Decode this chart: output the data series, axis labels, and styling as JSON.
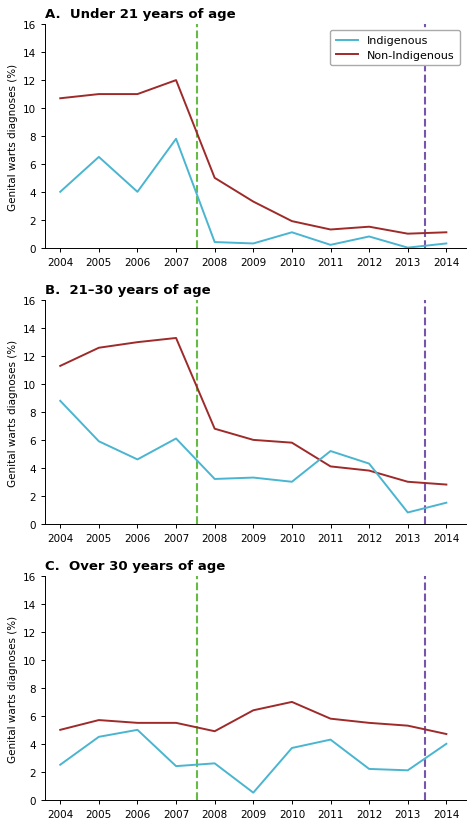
{
  "panels": [
    {
      "title": "A.  Under 21 years of age",
      "x_indigenous": [
        2004,
        2005,
        2006,
        2007,
        2008,
        2009,
        2010,
        2011,
        2012,
        2013,
        2014
      ],
      "y_indigenous": [
        4.0,
        6.5,
        4.0,
        7.8,
        0.4,
        0.3,
        1.1,
        0.2,
        0.8,
        0.0,
        0.3
      ],
      "x_non_indigenous": [
        2004,
        2005,
        2006,
        2007,
        2008,
        2009,
        2010,
        2011,
        2012,
        2013,
        2014
      ],
      "y_non_indigenous": [
        10.7,
        11.0,
        11.0,
        12.0,
        5.0,
        3.3,
        1.9,
        1.3,
        1.5,
        1.0,
        1.1
      ]
    },
    {
      "title": "B.  21–30 years of age",
      "x_indigenous": [
        2004,
        2005,
        2006,
        2007,
        2008,
        2009,
        2010,
        2011,
        2012,
        2013,
        2014
      ],
      "y_indigenous": [
        8.8,
        5.9,
        4.6,
        6.1,
        3.2,
        3.3,
        3.0,
        5.2,
        4.3,
        0.8,
        1.5
      ],
      "x_non_indigenous": [
        2004,
        2005,
        2006,
        2007,
        2008,
        2009,
        2010,
        2011,
        2012,
        2013,
        2014
      ],
      "y_non_indigenous": [
        11.3,
        12.6,
        13.0,
        13.3,
        6.8,
        6.0,
        5.8,
        4.1,
        3.8,
        3.0,
        2.8
      ]
    },
    {
      "title": "C.  Over 30 years of age",
      "x_indigenous": [
        2004,
        2005,
        2006,
        2007,
        2008,
        2009,
        2010,
        2011,
        2012,
        2013,
        2014
      ],
      "y_indigenous": [
        2.5,
        4.5,
        5.0,
        2.4,
        2.6,
        0.5,
        3.7,
        4.3,
        2.2,
        2.1,
        4.0
      ],
      "x_non_indigenous": [
        2004,
        2005,
        2006,
        2007,
        2008,
        2009,
        2010,
        2011,
        2012,
        2013,
        2014
      ],
      "y_non_indigenous": [
        5.0,
        5.7,
        5.5,
        5.5,
        4.9,
        6.4,
        7.0,
        5.8,
        5.5,
        5.3,
        4.7
      ]
    }
  ],
  "x_ticks": [
    2004,
    2005,
    2006,
    2007,
    2008,
    2009,
    2010,
    2011,
    2012,
    2013,
    2014
  ],
  "indigenous_color": "#4ab5d0",
  "non_indigenous_color": "#9e2a2a",
  "green_dashed_x": 2007.55,
  "purple_dashed_x": 2013.45,
  "green_color": "#66bb44",
  "purple_color": "#7755aa",
  "ylabel": "Genital warts diagnoses (%)",
  "ylim": [
    0,
    16
  ],
  "yticks": [
    0,
    2,
    4,
    6,
    8,
    10,
    12,
    14,
    16
  ]
}
